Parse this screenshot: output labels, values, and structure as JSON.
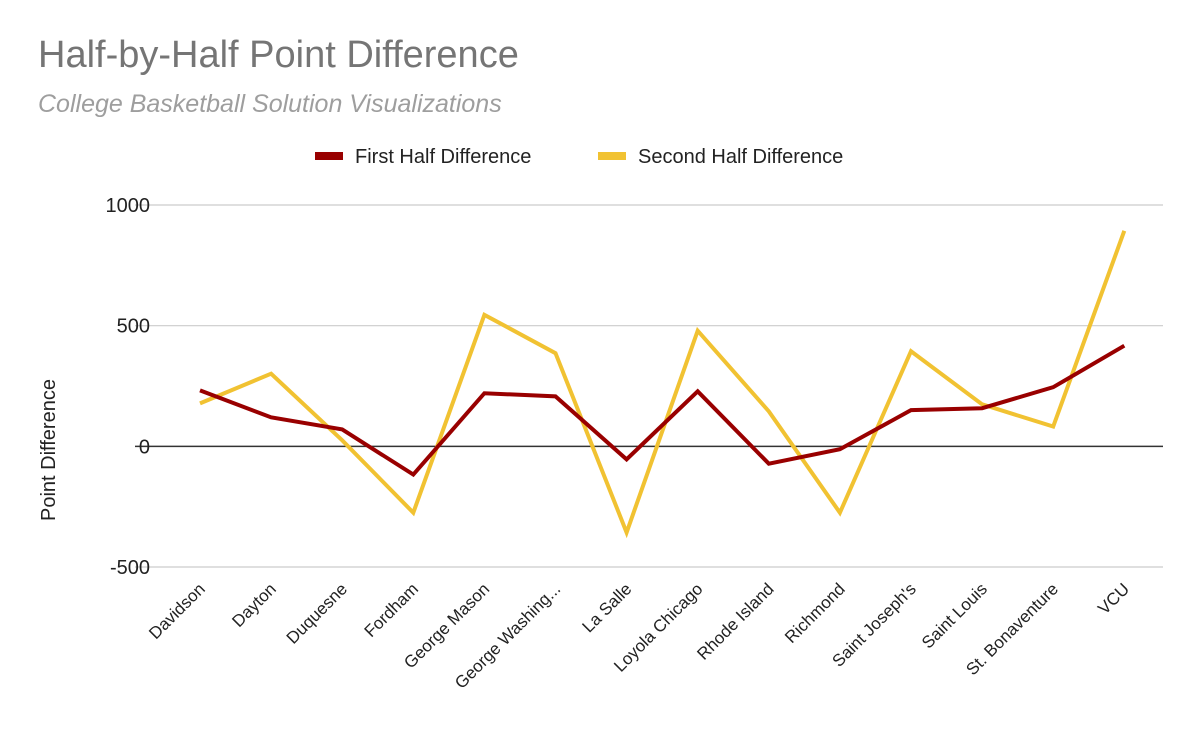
{
  "chart_data": {
    "type": "line",
    "title": "Half-by-Half Point Difference",
    "subtitle": "College Basketball Solution Visualizations",
    "xlabel": "",
    "ylabel": "Point Difference",
    "ylim": [
      -500,
      1000
    ],
    "yticks": [
      1000,
      500,
      0,
      -500
    ],
    "grid": true,
    "legend": "top",
    "categories": [
      "Davidson",
      "Dayton",
      "Duquesne",
      "Fordham",
      "George Mason",
      "George Washing...",
      "La Salle",
      "Loyola Chicago",
      "Rhode Island",
      "Richmond",
      "Saint Joseph's",
      "Saint Louis",
      "St. Bonaventure",
      "VCU"
    ],
    "series": [
      {
        "name": "First Half Difference",
        "color": "#990000",
        "values": [
          232,
          120,
          70,
          -117,
          220,
          207,
          -54,
          228,
          -72,
          -12,
          150,
          158,
          245,
          417
        ]
      },
      {
        "name": "Second Half Difference",
        "color": "#f1c232",
        "values": [
          178,
          301,
          25,
          -275,
          545,
          386,
          -357,
          479,
          145,
          -275,
          394,
          174,
          82,
          893
        ]
      }
    ]
  }
}
